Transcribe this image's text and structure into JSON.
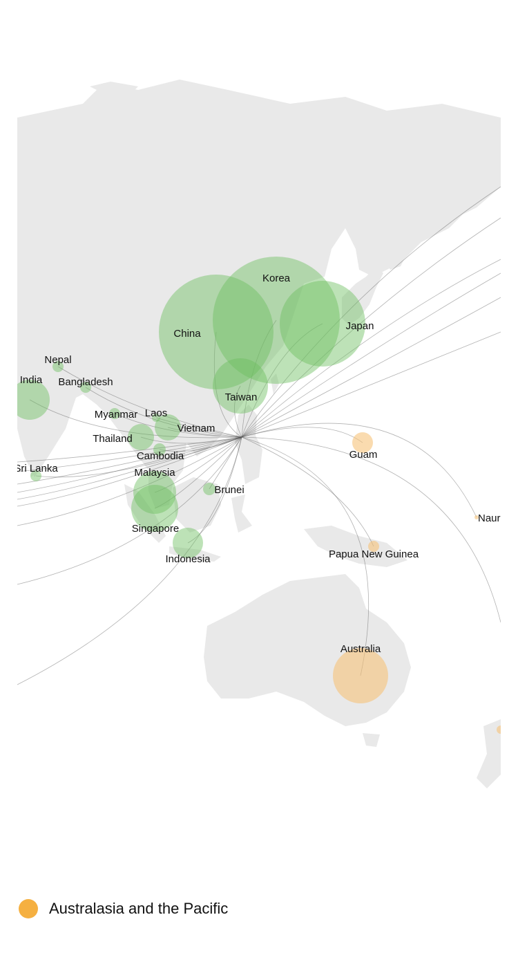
{
  "map": {
    "countries": [
      {
        "name": "Korea",
        "region": "asia"
      },
      {
        "name": "China",
        "region": "asia"
      },
      {
        "name": "Japan",
        "region": "asia"
      },
      {
        "name": "Taiwan",
        "region": "asia"
      },
      {
        "name": "Nepal",
        "region": "asia"
      },
      {
        "name": "India",
        "region": "asia"
      },
      {
        "name": "Bangladesh",
        "region": "asia"
      },
      {
        "name": "Myanmar",
        "region": "asia"
      },
      {
        "name": "Laos",
        "region": "asia"
      },
      {
        "name": "Vietnam",
        "region": "asia"
      },
      {
        "name": "Thailand",
        "region": "asia"
      },
      {
        "name": "Cambodia",
        "region": "asia"
      },
      {
        "name": "Malaysia",
        "region": "asia"
      },
      {
        "name": "Sri Lanka",
        "region": "asia"
      },
      {
        "name": "Brunei",
        "region": "asia"
      },
      {
        "name": "Singapore",
        "region": "asia"
      },
      {
        "name": "Indonesia",
        "region": "asia"
      },
      {
        "name": "Guam",
        "region": "pacific"
      },
      {
        "name": "Nauru",
        "region": "pacific"
      },
      {
        "name": "Papua New Guinea",
        "region": "pacific"
      },
      {
        "name": "Australia",
        "region": "pacific"
      }
    ]
  },
  "legend": {
    "label": "Australasia and the Pacific",
    "color": "#f5b041"
  },
  "colors": {
    "asia": "#6cbf5f",
    "pacific": "#f7c37a",
    "land": "#e9e9e9"
  }
}
